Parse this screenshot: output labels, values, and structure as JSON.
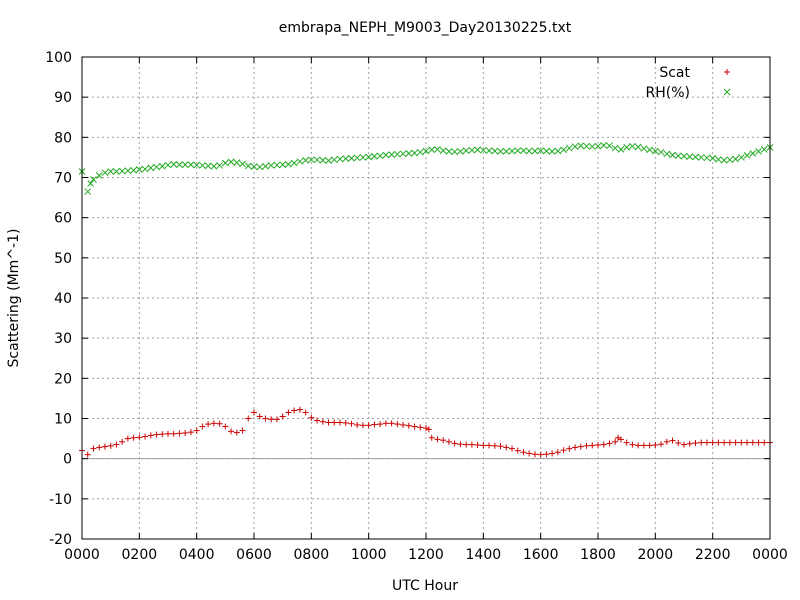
{
  "chart_data": {
    "type": "scatter",
    "title": "embrapa_NEPH_M9003_Day20130225.txt",
    "xlabel": "UTC Hour",
    "ylabel": "Scattering (Mm^-1)",
    "xlim": [
      0,
      24
    ],
    "ylim": [
      -20,
      100
    ],
    "x_tick_labels": [
      "0000",
      "0200",
      "0400",
      "0600",
      "0800",
      "1000",
      "1200",
      "1400",
      "1600",
      "1800",
      "2000",
      "2200",
      "0000"
    ],
    "y_ticks": [
      -20,
      -10,
      0,
      10,
      20,
      30,
      40,
      50,
      60,
      70,
      80,
      90,
      100
    ],
    "grid": true,
    "legend_position": "top-right",
    "colors": {
      "scat": "#cc0000",
      "rh": "#22aa22"
    },
    "series": [
      {
        "name": "Scat",
        "marker": "plus",
        "points": [
          [
            0.0,
            2
          ],
          [
            0.2,
            1
          ],
          [
            0.4,
            2.5
          ],
          [
            0.6,
            2.8
          ],
          [
            0.8,
            3
          ],
          [
            1.0,
            3.2
          ],
          [
            1.2,
            3.5
          ],
          [
            1.4,
            4.2
          ],
          [
            1.6,
            5
          ],
          [
            1.8,
            5.2
          ],
          [
            2.0,
            5.3
          ],
          [
            2.2,
            5.5
          ],
          [
            2.4,
            5.8
          ],
          [
            2.6,
            6
          ],
          [
            2.8,
            6.1
          ],
          [
            3.0,
            6.2
          ],
          [
            3.2,
            6.2
          ],
          [
            3.4,
            6.3
          ],
          [
            3.6,
            6.4
          ],
          [
            3.8,
            6.6
          ],
          [
            4.0,
            7
          ],
          [
            4.2,
            8
          ],
          [
            4.4,
            8.6
          ],
          [
            4.6,
            8.8
          ],
          [
            4.8,
            8.7
          ],
          [
            5.0,
            8
          ],
          [
            5.2,
            6.8
          ],
          [
            5.4,
            6.5
          ],
          [
            5.6,
            7
          ],
          [
            5.8,
            10
          ],
          [
            6.0,
            11.5
          ],
          [
            6.2,
            10.5
          ],
          [
            6.4,
            10
          ],
          [
            6.6,
            9.8
          ],
          [
            6.8,
            9.8
          ],
          [
            7.0,
            10.5
          ],
          [
            7.2,
            11.5
          ],
          [
            7.4,
            12
          ],
          [
            7.6,
            12.2
          ],
          [
            7.8,
            11.5
          ],
          [
            8.0,
            10.2
          ],
          [
            8.2,
            9.5
          ],
          [
            8.4,
            9.2
          ],
          [
            8.6,
            9
          ],
          [
            8.8,
            9
          ],
          [
            9.0,
            9
          ],
          [
            9.2,
            8.9
          ],
          [
            9.4,
            8.7
          ],
          [
            9.6,
            8.4
          ],
          [
            9.8,
            8.3
          ],
          [
            10.0,
            8.3
          ],
          [
            10.2,
            8.5
          ],
          [
            10.4,
            8.6
          ],
          [
            10.6,
            8.8
          ],
          [
            10.8,
            8.8
          ],
          [
            11.0,
            8.6
          ],
          [
            11.2,
            8.4
          ],
          [
            11.4,
            8.2
          ],
          [
            11.6,
            8
          ],
          [
            11.8,
            7.8
          ],
          [
            12.0,
            7.6
          ],
          [
            12.1,
            7.3
          ],
          [
            12.2,
            5.2
          ],
          [
            12.4,
            4.8
          ],
          [
            12.6,
            4.6
          ],
          [
            12.8,
            4.2
          ],
          [
            13.0,
            3.8
          ],
          [
            13.2,
            3.6
          ],
          [
            13.4,
            3.5
          ],
          [
            13.6,
            3.5
          ],
          [
            13.8,
            3.4
          ],
          [
            14.0,
            3.3
          ],
          [
            14.2,
            3.3
          ],
          [
            14.4,
            3.2
          ],
          [
            14.6,
            3.1
          ],
          [
            14.8,
            2.8
          ],
          [
            15.0,
            2.5
          ],
          [
            15.2,
            2
          ],
          [
            15.4,
            1.6
          ],
          [
            15.6,
            1.3
          ],
          [
            15.8,
            1.1
          ],
          [
            16.0,
            1
          ],
          [
            16.2,
            1.1
          ],
          [
            16.4,
            1.3
          ],
          [
            16.6,
            1.6
          ],
          [
            16.8,
            2.1
          ],
          [
            17.0,
            2.5
          ],
          [
            17.2,
            2.8
          ],
          [
            17.4,
            3
          ],
          [
            17.6,
            3.2
          ],
          [
            17.8,
            3.3
          ],
          [
            18.0,
            3.4
          ],
          [
            18.2,
            3.5
          ],
          [
            18.4,
            3.8
          ],
          [
            18.6,
            4.2
          ],
          [
            18.7,
            5.2
          ],
          [
            18.8,
            4.8
          ],
          [
            19.0,
            4
          ],
          [
            19.2,
            3.5
          ],
          [
            19.4,
            3.3
          ],
          [
            19.6,
            3.3
          ],
          [
            19.8,
            3.3
          ],
          [
            20.0,
            3.4
          ],
          [
            20.2,
            3.6
          ],
          [
            20.4,
            4.2
          ],
          [
            20.6,
            4.5
          ],
          [
            20.8,
            3.9
          ],
          [
            21.0,
            3.5
          ],
          [
            21.2,
            3.7
          ],
          [
            21.4,
            3.9
          ],
          [
            21.6,
            4
          ],
          [
            21.8,
            4
          ],
          [
            22.0,
            4
          ],
          [
            22.2,
            4
          ],
          [
            22.4,
            4
          ],
          [
            22.6,
            4
          ],
          [
            22.8,
            4
          ],
          [
            23.0,
            4
          ],
          [
            23.2,
            4
          ],
          [
            23.4,
            4
          ],
          [
            23.6,
            4
          ],
          [
            23.8,
            4
          ],
          [
            24.0,
            4
          ]
        ]
      },
      {
        "name": "RH(%)",
        "marker": "cross",
        "points": [
          [
            0.0,
            71.5
          ],
          [
            0.2,
            66.5
          ],
          [
            0.3,
            68.5
          ],
          [
            0.4,
            69.5
          ],
          [
            0.6,
            70.5
          ],
          [
            0.8,
            71.2
          ],
          [
            1.0,
            71.5
          ],
          [
            1.2,
            71.5
          ],
          [
            1.4,
            71.6
          ],
          [
            1.6,
            71.7
          ],
          [
            1.8,
            71.8
          ],
          [
            2.0,
            72
          ],
          [
            2.2,
            72.1
          ],
          [
            2.4,
            72.4
          ],
          [
            2.6,
            72.6
          ],
          [
            2.8,
            72.8
          ],
          [
            3.0,
            73.1
          ],
          [
            3.2,
            73.3
          ],
          [
            3.4,
            73.2
          ],
          [
            3.6,
            73.2
          ],
          [
            3.8,
            73.2
          ],
          [
            4.0,
            73.1
          ],
          [
            4.2,
            73
          ],
          [
            4.4,
            72.9
          ],
          [
            4.6,
            72.8
          ],
          [
            4.8,
            73
          ],
          [
            5.0,
            73.6
          ],
          [
            5.2,
            73.9
          ],
          [
            5.4,
            73.7
          ],
          [
            5.6,
            73.4
          ],
          [
            5.8,
            72.9
          ],
          [
            6.0,
            72.7
          ],
          [
            6.2,
            72.6
          ],
          [
            6.4,
            72.8
          ],
          [
            6.6,
            73
          ],
          [
            6.8,
            73.1
          ],
          [
            7.0,
            73.2
          ],
          [
            7.2,
            73.3
          ],
          [
            7.4,
            73.6
          ],
          [
            7.6,
            74
          ],
          [
            7.8,
            74.3
          ],
          [
            8.0,
            74.4
          ],
          [
            8.2,
            74.4
          ],
          [
            8.4,
            74.3
          ],
          [
            8.6,
            74.2
          ],
          [
            8.8,
            74.4
          ],
          [
            9.0,
            74.6
          ],
          [
            9.2,
            74.7
          ],
          [
            9.4,
            74.8
          ],
          [
            9.6,
            74.9
          ],
          [
            9.8,
            75
          ],
          [
            10.0,
            75.1
          ],
          [
            10.2,
            75.3
          ],
          [
            10.4,
            75.4
          ],
          [
            10.6,
            75.6
          ],
          [
            10.8,
            75.7
          ],
          [
            11.0,
            75.8
          ],
          [
            11.2,
            75.9
          ],
          [
            11.4,
            76
          ],
          [
            11.6,
            76.1
          ],
          [
            11.8,
            76.3
          ],
          [
            12.0,
            76.6
          ],
          [
            12.2,
            76.9
          ],
          [
            12.4,
            77
          ],
          [
            12.6,
            76.7
          ],
          [
            12.8,
            76.5
          ],
          [
            13.0,
            76.4
          ],
          [
            13.2,
            76.5
          ],
          [
            13.4,
            76.7
          ],
          [
            13.6,
            76.8
          ],
          [
            13.8,
            76.9
          ],
          [
            14.0,
            76.8
          ],
          [
            14.2,
            76.7
          ],
          [
            14.4,
            76.6
          ],
          [
            14.6,
            76.5
          ],
          [
            14.8,
            76.5
          ],
          [
            15.0,
            76.6
          ],
          [
            15.2,
            76.7
          ],
          [
            15.4,
            76.7
          ],
          [
            15.6,
            76.6
          ],
          [
            15.8,
            76.6
          ],
          [
            16.0,
            76.7
          ],
          [
            16.2,
            76.6
          ],
          [
            16.4,
            76.5
          ],
          [
            16.6,
            76.6
          ],
          [
            16.8,
            76.9
          ],
          [
            17.0,
            77.3
          ],
          [
            17.2,
            77.7
          ],
          [
            17.4,
            77.9
          ],
          [
            17.6,
            77.8
          ],
          [
            17.8,
            77.7
          ],
          [
            18.0,
            77.8
          ],
          [
            18.2,
            78
          ],
          [
            18.4,
            77.9
          ],
          [
            18.6,
            77.3
          ],
          [
            18.8,
            77
          ],
          [
            19.0,
            77.5
          ],
          [
            19.2,
            77.8
          ],
          [
            19.4,
            77.6
          ],
          [
            19.6,
            77.2
          ],
          [
            19.8,
            76.9
          ],
          [
            20.0,
            76.6
          ],
          [
            20.2,
            76.3
          ],
          [
            20.4,
            75.9
          ],
          [
            20.6,
            75.6
          ],
          [
            20.8,
            75.4
          ],
          [
            21.0,
            75.3
          ],
          [
            21.2,
            75.2
          ],
          [
            21.4,
            75.1
          ],
          [
            21.6,
            75
          ],
          [
            21.8,
            74.9
          ],
          [
            22.0,
            74.8
          ],
          [
            22.2,
            74.5
          ],
          [
            22.4,
            74.3
          ],
          [
            22.6,
            74.4
          ],
          [
            22.8,
            74.6
          ],
          [
            23.0,
            75
          ],
          [
            23.2,
            75.5
          ],
          [
            23.4,
            76
          ],
          [
            23.6,
            76.5
          ],
          [
            23.8,
            77
          ],
          [
            24.0,
            77.5
          ]
        ]
      }
    ]
  }
}
